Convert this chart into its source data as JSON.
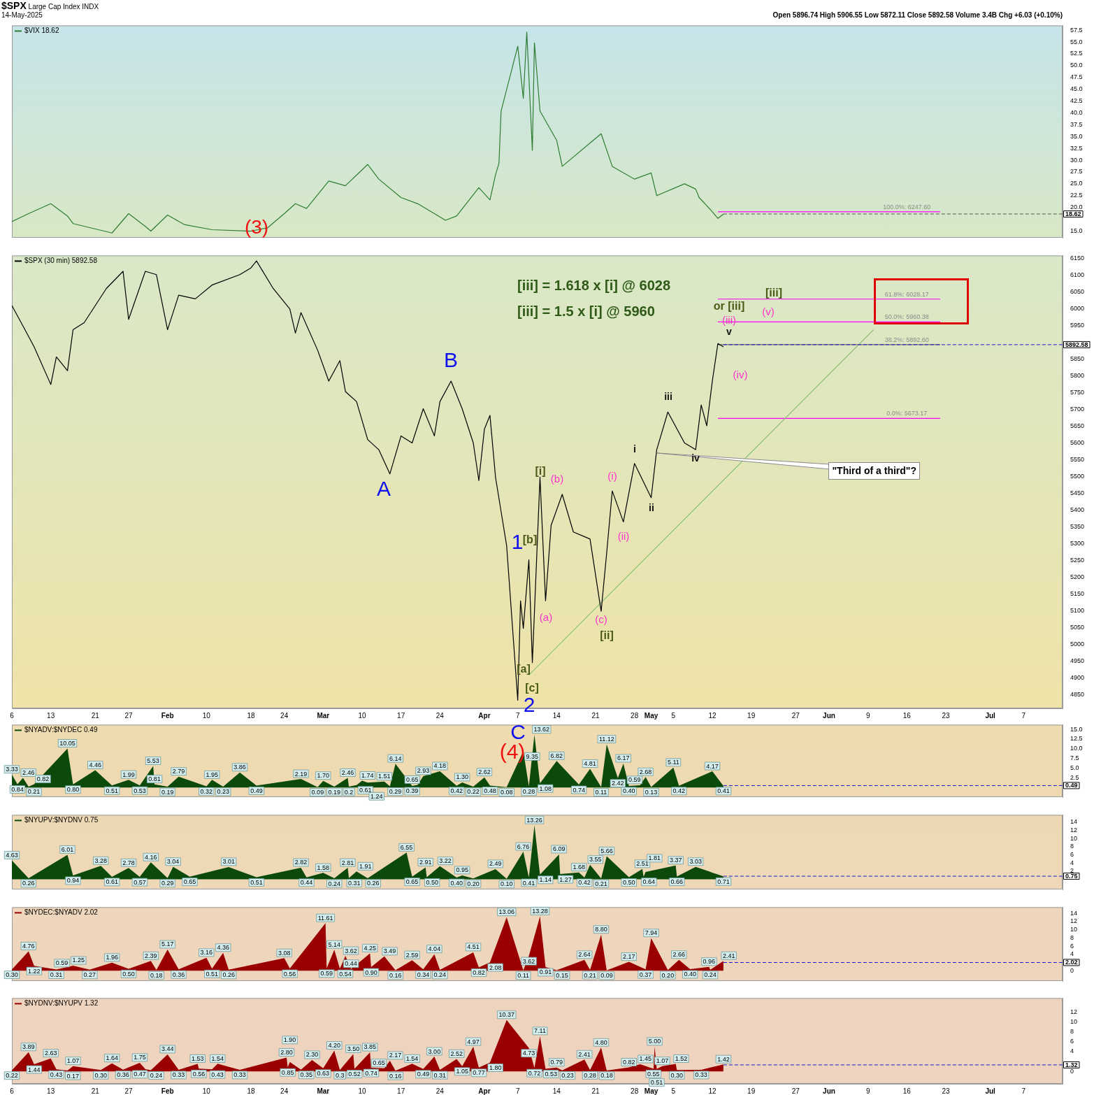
{
  "chart_data": [
    {
      "type": "line",
      "title": "$SPX Large Cap Index INDX",
      "subtitle": "14-May-2025",
      "legend": "top left",
      "tick_labels": "y",
      "marker": "none",
      "annotations": [
        "Open 5896.74 High 5906.55 Low 5872.11 Close 5892.58 Volume 3.4B Chg +6.03 (+0.10%)",
        {
          "text": "100.0%: 6247.60",
          "x": "2025-06-16",
          "y": 19.1
        },
        "(3)"
      ],
      "xlim": [
        "2025-01-06",
        "2025-07-14"
      ],
      "ylim": [
        13.6,
        58.5
      ],
      "yticks": [
        {
          "value": 15,
          "label": "15.0"
        },
        {
          "value": 20,
          "label": "20.0"
        },
        22.5,
        {
          "value": 25,
          "label": "25.0"
        },
        27.5,
        {
          "value": 30,
          "label": "30.0"
        },
        32.5,
        {
          "value": 35,
          "label": "35.0"
        },
        37.5,
        {
          "value": 40,
          "label": "40.0"
        },
        42.5,
        {
          "value": 45,
          "label": "45.0"
        },
        47.5,
        {
          "value": 50,
          "label": "50.0"
        },
        52.5,
        {
          "value": 55,
          "label": "55.0"
        },
        57.5
      ],
      "ref_lines": [
        {
          "axis": "y",
          "value": 18.62,
          "label": "18.62",
          "color": "#555555",
          "line_style": "dashed"
        }
      ],
      "series": [
        {
          "name": "$VIX 18.62",
          "color": "#2e7d32",
          "x": [
            "2025-01-06",
            "2025-01-09",
            "2025-01-13",
            "2025-01-16",
            "2025-01-17",
            "2025-01-23",
            "2025-01-24",
            "2025-01-27",
            "2025-01-30",
            "2025-01-31",
            "2025-02-03",
            "2025-02-06",
            "2025-02-11",
            "2025-02-18",
            "2025-02-21",
            "2025-02-24",
            "2025-02-26",
            "2025-02-28",
            "2025-03-04",
            "2025-03-07",
            "2025-03-11",
            "2025-03-13",
            "2025-03-17",
            "2025-03-20",
            "2025-03-25",
            "2025-03-27",
            "2025-03-31",
            "2025-04-02",
            "2025-04-03",
            "2025-04-03T15:00",
            "2025-04-04",
            "2025-04-07",
            "2025-04-08",
            "2025-04-08T15:00",
            "2025-04-09T15:00",
            "2025-04-10",
            "2025-04-11",
            "2025-04-14",
            "2025-04-15",
            "2025-04-22",
            "2025-04-24",
            "2025-04-28",
            "2025-05-01",
            "2025-05-02",
            "2025-05-07",
            "2025-05-09",
            "2025-05-09T15:00",
            "2025-05-12",
            "2025-05-13",
            "2025-05-14"
          ],
          "values": [
            17.0,
            18.7,
            20.8,
            18.2,
            16.6,
            14.9,
            14.6,
            18.7,
            16.0,
            15.0,
            18.4,
            16.4,
            15.3,
            15.0,
            15.7,
            18.7,
            20.8,
            19.8,
            25.6,
            24.6,
            29.1,
            26.0,
            22.1,
            20.8,
            17.3,
            18.2,
            24.2,
            21.6,
            26.9,
            29.4,
            40.4,
            54.1,
            43.1,
            57.1,
            32.1,
            54.8,
            40.4,
            34.2,
            28.7,
            35.6,
            28.7,
            26.0,
            27.3,
            22.5,
            25.0,
            23.9,
            22.1,
            19.1,
            17.7,
            18.6
          ]
        },
        {
          "color": "#ff00ff",
          "x": [
            "2025-05-13",
            "2025-06-22"
          ],
          "values": [
            19.1,
            19.1
          ]
        }
      ]
    },
    {
      "type": "line",
      "legend": "top left",
      "marker": "none",
      "annotations": [
        "[iii] = 1.618 x [i] @ 6028",
        "[iii] = 1.5 x [i] @ 5960",
        {
          "text": "61.8%: 6028.17",
          "x": "2025-06-16",
          "y": 6028.17
        },
        {
          "text": "50.0%: 5960.38",
          "x": "2025-06-16",
          "y": 5960.38
        },
        {
          "text": "38.2%: 5892.60",
          "x": "2025-06-16",
          "y": 5892.6
        },
        {
          "text": "0.0%: 5673.17",
          "x": "2025-06-16",
          "y": 5673.17
        },
        {
          "text": "\"Third of a third\"?",
          "x": "2025-05-02",
          "y": 5570
        },
        "A",
        "B",
        "1",
        "2",
        "[a]",
        "[b]",
        "[c]",
        "[i]",
        "[ii]",
        "or [iii]",
        "[iii]",
        "(a)",
        "(b)",
        "(c)",
        "(i)",
        "(ii)",
        "(iii)",
        "(iv)",
        "(v)",
        "i",
        "ii",
        "iii",
        "iv",
        "v"
      ],
      "xlim": [
        "2025-01-06",
        "2025-07-14"
      ],
      "ylim": [
        4810,
        6158
      ],
      "xticks": [
        {
          "value": "2025-01-06",
          "label": "6"
        },
        {
          "value": "2025-01-13",
          "label": "13"
        },
        {
          "value": "2025-01-21",
          "label": "21"
        },
        {
          "value": "2025-01-27",
          "label": "27"
        },
        {
          "value": "2025-02-03",
          "label": "Feb"
        },
        {
          "value": "2025-02-10",
          "label": "10"
        },
        {
          "value": "2025-02-18",
          "label": "18"
        },
        {
          "value": "2025-02-24",
          "label": "24"
        },
        {
          "value": "2025-03-03",
          "label": "Mar"
        },
        {
          "value": "2025-03-10",
          "label": "10"
        },
        {
          "value": "2025-03-17",
          "label": "17"
        },
        {
          "value": "2025-03-24",
          "label": "24"
        },
        {
          "value": "2025-04-01",
          "label": "Apr"
        },
        {
          "value": "2025-04-07",
          "label": "7"
        },
        {
          "value": "2025-04-14",
          "label": "14"
        },
        {
          "value": "2025-04-21",
          "label": "21"
        },
        {
          "value": "2025-04-28",
          "label": "28"
        },
        {
          "value": "2025-05-01",
          "label": "May"
        },
        {
          "value": "2025-05-05",
          "label": "5"
        },
        {
          "value": "2025-05-12",
          "label": "12"
        },
        {
          "value": "2025-05-19",
          "label": "19"
        },
        {
          "value": "2025-05-27",
          "label": "27"
        },
        {
          "value": "2025-06-02",
          "label": "Jun"
        },
        {
          "value": "2025-06-09",
          "label": "9"
        },
        {
          "value": "2025-06-16",
          "label": "16"
        },
        {
          "value": "2025-06-23",
          "label": "23"
        },
        {
          "value": "2025-07-01",
          "label": "Jul"
        },
        {
          "value": "2025-07-07",
          "label": "7"
        }
      ],
      "yticks": [
        4850,
        4900,
        4950,
        5000,
        5050,
        5100,
        5150,
        5200,
        5250,
        5300,
        5350,
        5400,
        5450,
        5500,
        5550,
        5600,
        5650,
        5700,
        5750,
        5800,
        5850,
        5950,
        6000,
        6050,
        6100,
        6150
      ],
      "ref_lines": [
        {
          "axis": "y",
          "value": 5892.58,
          "label": "5892.58",
          "color": "#1a1acc",
          "line_style": "dashed"
        }
      ],
      "series": [
        {
          "name": "$SPX (30 min) 5892.58",
          "color": "#000000",
          "x": [
            "2025-01-06",
            "2025-01-08",
            "2025-01-10",
            "2025-01-13",
            "2025-01-14",
            "2025-01-16",
            "2025-01-17",
            "2025-01-19",
            "2025-01-21",
            "2025-01-23",
            "2025-01-26",
            "2025-01-27",
            "2025-01-30",
            "2025-02-01",
            "2025-02-03",
            "2025-02-05",
            "2025-02-08",
            "2025-02-11",
            "2025-02-16",
            "2025-02-18",
            "2025-02-19",
            "2025-02-22",
            "2025-02-25",
            "2025-02-26",
            "2025-02-27",
            "2025-03-02",
            "2025-03-04",
            "2025-03-06",
            "2025-03-07",
            "2025-03-09",
            "2025-03-11",
            "2025-03-13",
            "2025-03-15",
            "2025-03-17",
            "2025-03-19",
            "2025-03-21",
            "2025-03-23",
            "2025-03-24",
            "2025-03-26",
            "2025-03-28",
            "2025-03-30",
            "2025-03-31",
            "2025-04-01",
            "2025-04-02",
            "2025-04-03",
            "2025-04-04",
            "2025-04-05",
            "2025-04-07",
            "2025-04-07T12:00",
            "2025-04-08",
            "2025-04-09",
            "2025-04-09T15:00",
            "2025-04-11",
            "2025-04-12",
            "2025-04-13",
            "2025-04-15",
            "2025-04-17",
            "2025-04-20",
            "2025-04-22",
            "2025-04-23",
            "2025-04-24",
            "2025-04-26",
            "2025-04-28",
            "2025-05-01",
            "2025-05-02",
            "2025-05-04",
            "2025-05-07",
            "2025-05-09",
            "2025-05-10",
            "2025-05-11",
            "2025-05-12",
            "2025-05-13",
            "2025-05-14"
          ],
          "values": [
            6009,
            5948,
            5886,
            5774,
            5856,
            5815,
            5937,
            5958,
            6009,
            6060,
            6111,
            5968,
            6111,
            6101,
            5937,
            6040,
            6029,
            6070,
            6101,
            6121,
            6142,
            6060,
            5999,
            5927,
            5988,
            5876,
            5784,
            5845,
            5753,
            5723,
            5610,
            5580,
            5508,
            5621,
            5600,
            5702,
            5621,
            5723,
            5784,
            5702,
            5600,
            5488,
            5641,
            5682,
            5498,
            5396,
            5294,
            4834,
            5130,
            5048,
            5252,
            4946,
            5498,
            5130,
            5355,
            5447,
            5335,
            5314,
            5099,
            5273,
            5457,
            5365,
            5539,
            5437,
            5580,
            5692,
            5600,
            5580,
            5713,
            5651,
            5784,
            5896,
            5886
          ]
        },
        {
          "color": "#8cbf70",
          "x": [
            "2025-04-09",
            "2025-06-10"
          ],
          "values": [
            4909,
            5937
          ]
        },
        {
          "color": "#ff00ff",
          "x": [
            "2025-05-13",
            "2025-06-22"
          ],
          "values": [
            6028.17,
            6028.17
          ]
        },
        {
          "color": "#ff00ff",
          "x": [
            "2025-05-13",
            "2025-06-22"
          ],
          "values": [
            5960.38,
            5960.38
          ]
        },
        {
          "color": "#707070",
          "x": [
            "2025-05-13",
            "2025-06-22"
          ],
          "values": [
            5892.6,
            5892.6
          ]
        },
        {
          "color": "#ff00ff",
          "x": [
            "2025-05-13",
            "2025-06-22"
          ],
          "values": [
            5673.17,
            5673.17
          ]
        }
      ]
    },
    {
      "type": "area",
      "legend": "top left",
      "tick_labels": "y",
      "marker": "none",
      "xlim": [
        "2025-01-06",
        "2025-07-14"
      ],
      "ylim": [
        -2.5,
        16.2
      ],
      "annotations": [
        "C",
        "(4)"
      ],
      "yticks": [
        2.5,
        {
          "value": 5,
          "label": "5.0"
        },
        7.5,
        {
          "value": 10,
          "label": "10.0"
        },
        12.5,
        {
          "value": 15,
          "label": "15.0"
        }
      ],
      "ref_lines": [
        {
          "axis": "y",
          "value": 0.49,
          "label": "0.49",
          "color": "#1a1acc",
          "line_style": "dashed"
        }
      ],
      "series": [
        {
          "name": "$NYADV:$NYDEC 0.49",
          "color": "#0b4a0b",
          "x": [
            "2025-01-06",
            "2025-01-07",
            "2025-01-08",
            "2025-01-09",
            "2025-01-10",
            "2025-01-16",
            "2025-01-17",
            "2025-01-21",
            "2025-01-24",
            "2025-01-27",
            "2025-01-29",
            "2025-01-31T10:00",
            "2025-01-31T16:00",
            "2025-02-03",
            "2025-02-05",
            "2025-02-10",
            "2025-02-11",
            "2025-02-13",
            "2025-02-16",
            "2025-02-19",
            "2025-02-27",
            "2025-03-02",
            "2025-03-03",
            "2025-03-05",
            "2025-03-07T10:00",
            "2025-03-07T15:00",
            "2025-03-09",
            "2025-03-10",
            "2025-03-11",
            "2025-03-14",
            "2025-03-15",
            "2025-03-16",
            "2025-03-19",
            "2025-03-20",
            "2025-03-21",
            "2025-03-24",
            "2025-03-27",
            "2025-03-28",
            "2025-03-30",
            "2025-04-01",
            "2025-04-02",
            "2025-04-05",
            "2025-04-08",
            "2025-04-09",
            "2025-04-10",
            "2025-04-11",
            "2025-04-14",
            "2025-04-18",
            "2025-04-20",
            "2025-04-22",
            "2025-04-23",
            "2025-04-25",
            "2025-04-26",
            "2025-04-27",
            "2025-04-29",
            "2025-04-30",
            "2025-05-01",
            "2025-05-05",
            "2025-05-06",
            "2025-05-12",
            "2025-05-14"
          ],
          "values": [
            3.33,
            0.84,
            2.46,
            0.21,
            0.82,
            10.05,
            0.8,
            4.46,
            0.51,
            1.99,
            0.53,
            5.53,
            0.81,
            0.19,
            2.79,
            0.32,
            1.95,
            0.23,
            3.86,
            0.49,
            2.19,
            0.09,
            1.7,
            0.19,
            2.46,
            0.2,
            0.61,
            1.74,
            1.24,
            1.51,
            0.29,
            6.14,
            0.39,
            0.65,
            2.93,
            4.18,
            0.42,
            1.3,
            0.22,
            2.62,
            0.48,
            0.08,
            9.35,
            0.28,
            13.62,
            1.08,
            6.82,
            0.74,
            4.81,
            0.11,
            11.12,
            2.42,
            6.17,
            0.4,
            0.59,
            2.68,
            0.13,
            5.11,
            0.42,
            4.17,
            0.41
          ],
          "value_labels": [
            "3.33",
            "0.84",
            "2.46",
            "0.21",
            "0.82",
            "10.05",
            "0.80",
            "4.46",
            "0.51",
            "1.99",
            "0.53",
            "5.53",
            "0.81",
            "0.19",
            "2.79",
            "0.32",
            "1.95",
            "0.23",
            "3.86",
            "0.49",
            "2.19",
            "0.09",
            "1.70",
            "0.19",
            "2.46",
            "0.2",
            "0.61",
            "1.74",
            "1.24",
            "1.51",
            "0.29",
            "6.14",
            "0.39",
            "0.65",
            "2.93",
            "4.18",
            "0.42",
            "1.30",
            "0.22",
            "2.62",
            "0.48",
            "0.08",
            "9.35",
            "0.28",
            "13.62",
            "1.08",
            "6.82",
            "0.74",
            "4.81",
            "0.11",
            "11.12",
            "2.42",
            "6.17",
            "0.40",
            "0.59",
            "2.68",
            "0.13",
            "5.11",
            "0.42",
            "4.17",
            "0.41"
          ]
        }
      ]
    },
    {
      "type": "area",
      "legend": "top left",
      "tick_labels": "y",
      "marker": "none",
      "xlim": [
        "2025-01-06",
        "2025-07-14"
      ],
      "ylim": [
        -2.5,
        15.8
      ],
      "yticks": [
        2,
        4,
        6,
        8,
        10,
        12,
        14
      ],
      "ref_lines": [
        {
          "axis": "y",
          "value": 0.75,
          "label": "0.75",
          "color": "#1a1acc",
          "line_style": "dashed"
        }
      ],
      "series": [
        {
          "name": "$NYUPV:$NYDNV 0.75",
          "color": "#0b4a0b",
          "x": [
            "2025-01-06",
            "2025-01-09",
            "2025-01-16",
            "2025-01-17",
            "2025-01-22",
            "2025-01-24",
            "2025-01-27",
            "2025-01-29",
            "2025-01-31",
            "2025-02-03",
            "2025-02-04",
            "2025-02-07",
            "2025-02-14",
            "2025-02-19",
            "2025-02-27",
            "2025-02-28",
            "2025-03-03",
            "2025-03-05",
            "2025-03-07T10:00",
            "2025-03-07T15:00",
            "2025-03-09",
            "2025-03-11",
            "2025-03-18",
            "2025-03-19",
            "2025-03-21T10:00",
            "2025-03-21T15:00",
            "2025-03-24",
            "2025-03-27",
            "2025-03-28",
            "2025-03-30",
            "2025-04-03",
            "2025-04-05",
            "2025-04-08",
            "2025-04-09",
            "2025-04-10",
            "2025-04-11",
            "2025-04-14T10:00",
            "2025-04-14T15:00",
            "2025-04-18",
            "2025-04-19",
            "2025-04-20",
            "2025-04-22",
            "2025-04-23",
            "2025-04-27",
            "2025-04-29T10:00",
            "2025-04-29T15:00",
            "2025-04-30",
            "2025-05-05T10:00",
            "2025-05-05T15:00",
            "2025-05-09",
            "2025-05-14"
          ],
          "values": [
            4.63,
            0.26,
            6.01,
            0.94,
            3.28,
            0.61,
            2.78,
            0.57,
            4.16,
            0.29,
            3.04,
            0.65,
            3.01,
            0.51,
            2.82,
            0.44,
            1.58,
            0.24,
            2.81,
            0.31,
            1.91,
            0.26,
            6.55,
            0.65,
            2.91,
            0.5,
            3.22,
            0.4,
            0.95,
            0.2,
            2.49,
            0.1,
            6.76,
            0.41,
            13.26,
            1.14,
            6.09,
            1.27,
            1.68,
            0.42,
            3.55,
            0.21,
            5.66,
            0.5,
            2.51,
            0.64,
            1.81,
            3.37,
            0.66,
            3.03,
            0.71
          ],
          "value_labels": [
            "4.63",
            "0.26",
            "6.01",
            "0.94",
            "3.28",
            "0.61",
            "2.78",
            "0.57",
            "4.16",
            "0.29",
            "3.04",
            "0.65",
            "3.01",
            "0.51",
            "2.82",
            "0.44",
            "1.58",
            "0.24",
            "2.81",
            "0.31",
            "1.91",
            "0.26",
            "6.55",
            "0.65",
            "2.91",
            "0.50",
            "3.22",
            "0.40",
            "0.95",
            "0.20",
            "2.49",
            "0.10",
            "6.76",
            "0.41",
            "13.26",
            "1.14",
            "6.09",
            "1.27",
            "1.68",
            "0.42",
            "3.55",
            "0.21",
            "5.66",
            "0.50",
            "2.51",
            "0.64",
            "1.81",
            "3.37",
            "0.66",
            "3.03",
            "0.71"
          ]
        }
      ]
    },
    {
      "type": "area",
      "legend": "top left",
      "tick_labels": "y",
      "marker": "none",
      "xlim": [
        "2025-01-06",
        "2025-07-14"
      ],
      "ylim": [
        -2.5,
        15.5
      ],
      "yticks": [
        0,
        4,
        6,
        8,
        10,
        12,
        14
      ],
      "ref_lines": [
        {
          "axis": "y",
          "value": 2.02,
          "label": "2.02",
          "color": "#1a1acc",
          "line_style": "dashed"
        }
      ],
      "series": [
        {
          "name": "$NYDEC:$NYADV 2.02",
          "color": "#9b0000",
          "x": [
            "2025-01-06",
            "2025-01-09",
            "2025-01-10",
            "2025-01-14",
            "2025-01-15",
            "2025-01-17",
            "2025-01-20",
            "2025-01-24",
            "2025-01-27",
            "2025-01-31",
            "2025-02-01",
            "2025-02-03",
            "2025-02-05",
            "2025-02-10",
            "2025-02-11",
            "2025-02-13",
            "2025-02-14",
            "2025-02-24",
            "2025-02-25",
            "2025-03-03T10:00",
            "2025-03-03T15:00",
            "2025-03-05",
            "2025-03-06",
            "2025-03-07",
            "2025-03-08",
            "2025-03-11T10:00",
            "2025-03-11T15:00",
            "2025-03-14",
            "2025-03-16",
            "2025-03-19",
            "2025-03-21",
            "2025-03-23",
            "2025-03-24",
            "2025-03-30",
            "2025-03-31",
            "2025-04-02",
            "2025-04-05",
            "2025-04-08",
            "2025-04-09",
            "2025-04-11",
            "2025-04-12",
            "2025-04-14",
            "2025-04-19",
            "2025-04-20",
            "2025-04-22",
            "2025-04-23",
            "2025-04-27",
            "2025-04-30",
            "2025-05-01",
            "2025-05-04",
            "2025-05-06",
            "2025-05-08",
            "2025-05-11T10:00",
            "2025-05-11T15:00",
            "2025-05-14"
          ],
          "values": [
            0.3,
            4.76,
            1.22,
            0.31,
            0.59,
            1.25,
            0.27,
            1.96,
            0.5,
            2.39,
            0.18,
            5.17,
            0.36,
            3.16,
            0.51,
            4.36,
            0.26,
            3.08,
            0.56,
            11.61,
            0.59,
            5.14,
            0.54,
            3.62,
            0.44,
            4.25,
            0.9,
            3.49,
            0.16,
            2.59,
            0.34,
            4.04,
            0.24,
            4.51,
            0.82,
            2.08,
            13.06,
            0.11,
            3.62,
            13.28,
            0.91,
            0.15,
            2.64,
            0.21,
            8.8,
            0.09,
            2.17,
            0.37,
            7.94,
            0.2,
            2.66,
            0.4,
            0.96,
            0.24,
            2.41
          ],
          "value_labels": [
            "0.30",
            "4.76",
            "1.22",
            "0.31",
            "0.59",
            "1.25",
            "0.27",
            "1.96",
            "0.50",
            "2.39",
            "0.18",
            "5.17",
            "0.36",
            "3.16",
            "0.51",
            "4.36",
            "0.26",
            "3.08",
            "0.56",
            "11.61",
            "0.59",
            "5.14",
            "0.54",
            "3.62",
            "0.44",
            "4.25",
            "0.90",
            "3.49",
            "0.16",
            "2.59",
            "0.34",
            "4.04",
            "0.24",
            "4.51",
            "0.82",
            "2.08",
            "13.06",
            "0.11",
            "3.62",
            "13.28",
            "0.91",
            "0.15",
            "2.64",
            "0.21",
            "8.80",
            "0.09",
            "2.17",
            "0.37",
            "7.94",
            "0.20",
            "2.66",
            "0.40",
            "0.96",
            "0.24",
            "2.41"
          ]
        }
      ]
    },
    {
      "type": "area",
      "legend": "top left",
      "marker": "none",
      "xlim": [
        "2025-01-06",
        "2025-07-14"
      ],
      "ylim": [
        -2.5,
        14.8
      ],
      "xticks": [
        {
          "value": "2025-01-06",
          "label": "6"
        },
        {
          "value": "2025-01-13",
          "label": "13"
        },
        {
          "value": "2025-01-21",
          "label": "21"
        },
        {
          "value": "2025-01-27",
          "label": "27"
        },
        {
          "value": "2025-02-03",
          "label": "Feb"
        },
        {
          "value": "2025-02-10",
          "label": "10"
        },
        {
          "value": "2025-02-18",
          "label": "18"
        },
        {
          "value": "2025-02-24",
          "label": "24"
        },
        {
          "value": "2025-03-03",
          "label": "Mar"
        },
        {
          "value": "2025-03-10",
          "label": "10"
        },
        {
          "value": "2025-03-17",
          "label": "17"
        },
        {
          "value": "2025-03-24",
          "label": "24"
        },
        {
          "value": "2025-04-01",
          "label": "Apr"
        },
        {
          "value": "2025-04-07",
          "label": "7"
        },
        {
          "value": "2025-04-14",
          "label": "14"
        },
        {
          "value": "2025-04-21",
          "label": "21"
        },
        {
          "value": "2025-04-28",
          "label": "28"
        },
        {
          "value": "2025-05-01",
          "label": "May"
        },
        {
          "value": "2025-05-05",
          "label": "5"
        },
        {
          "value": "2025-05-12",
          "label": "12"
        },
        {
          "value": "2025-05-19",
          "label": "19"
        },
        {
          "value": "2025-05-27",
          "label": "27"
        },
        {
          "value": "2025-06-02",
          "label": "Jun"
        },
        {
          "value": "2025-06-09",
          "label": "9"
        },
        {
          "value": "2025-06-16",
          "label": "16"
        },
        {
          "value": "2025-06-23",
          "label": "23"
        },
        {
          "value": "2025-07-01",
          "label": "Jul"
        },
        {
          "value": "2025-07-07",
          "label": "7"
        }
      ],
      "yticks": [
        0,
        4,
        6,
        8,
        10,
        12
      ],
      "ref_lines": [
        {
          "axis": "y",
          "value": 1.32,
          "label": "1.32",
          "color": "#1a1acc",
          "line_style": "dashed"
        }
      ],
      "series": [
        {
          "name": "$NYDNV:$NYUPV 1.32",
          "color": "#9b0000",
          "x": [
            "2025-01-06",
            "2025-01-09",
            "2025-01-10",
            "2025-01-13",
            "2025-01-14",
            "2025-01-16",
            "2025-01-17",
            "2025-01-22",
            "2025-01-24",
            "2025-01-26",
            "2025-01-29",
            "2025-01-30",
            "2025-01-31",
            "2025-02-03",
            "2025-02-05",
            "2025-02-08T10:00",
            "2025-02-08T15:00",
            "2025-02-11",
            "2025-02-12",
            "2025-02-16",
            "2025-02-24T10:00",
            "2025-02-24T15:00",
            "2025-02-25",
            "2025-02-27",
            "2025-03-01",
            "2025-03-03",
            "2025-03-05",
            "2025-03-06",
            "2025-03-08T10:00",
            "2025-03-08T15:00",
            "2025-03-11T10:00",
            "2025-03-11T15:00",
            "2025-03-14",
            "2025-03-15",
            "2025-03-16",
            "2025-03-19",
            "2025-03-21",
            "2025-03-23",
            "2025-03-24",
            "2025-03-27",
            "2025-03-28",
            "2025-03-30",
            "2025-03-31",
            "2025-04-02",
            "2025-04-05",
            "2025-04-09",
            "2025-04-10",
            "2025-04-11",
            "2025-04-12",
            "2025-04-14",
            "2025-04-15",
            "2025-04-19",
            "2025-04-20",
            "2025-04-22",
            "2025-04-23",
            "2025-04-27",
            "2025-04-29",
            "2025-05-01T10:00",
            "2025-05-01T15:00",
            "2025-05-02",
            "2025-05-03",
            "2025-05-05T10:00",
            "2025-05-05T15:00",
            "2025-05-10",
            "2025-05-14"
          ],
          "values": [
            0.22,
            3.89,
            1.44,
            2.63,
            0.43,
            0.17,
            1.07,
            0.3,
            1.64,
            0.36,
            1.75,
            0.47,
            0.24,
            3.44,
            0.33,
            1.53,
            0.56,
            0.43,
            1.54,
            0.33,
            2.8,
            0.85,
            1.9,
            0.35,
            2.3,
            0.63,
            4.2,
            0.3,
            3.5,
            0.52,
            3.85,
            0.74,
            0.65,
            2.17,
            0.16,
            1.54,
            0.49,
            3.0,
            0.31,
            2.52,
            1.05,
            4.97,
            0.77,
            1.8,
            10.37,
            4.73,
            0.72,
            7.11,
            0.53,
            0.79,
            0.23,
            2.41,
            0.28,
            4.8,
            0.18,
            0.82,
            1.45,
            0.55,
            5.0,
            0.51,
            1.07,
            1.52,
            0.3,
            0.33,
            1.42
          ],
          "value_labels": [
            "0.22",
            "3.89",
            "1.44",
            "2.63",
            "0.43",
            "0.17",
            "1.07",
            "0.30",
            "1.64",
            "0.36",
            "1.75",
            "0.47",
            "0.24",
            "3.44",
            "0.33",
            "1.53",
            "0.56",
            "0.43",
            "1.54",
            "0.33",
            "2.80",
            "0.85",
            "1.90",
            "0.35",
            "2.30",
            "0.63",
            "4.20",
            "0.3",
            "3.50",
            "0.52",
            "3.85",
            "0.74",
            "0.65",
            "2.17",
            "0.16",
            "1.54",
            "0.49",
            "3.00",
            "0.31",
            "2.52",
            "1.05",
            "4.97",
            "0.77",
            "1.80",
            "10.37",
            "4.73",
            "0.72",
            "7.11",
            "0.53",
            "0.79",
            "0.23",
            "2.41",
            "0.28",
            "4.80",
            "0.18",
            "0.82",
            "1.45",
            "0.55",
            "5.00",
            "0.51",
            "1.07",
            "1.52",
            "0.30",
            "0.33",
            "1.42"
          ]
        }
      ]
    }
  ]
}
